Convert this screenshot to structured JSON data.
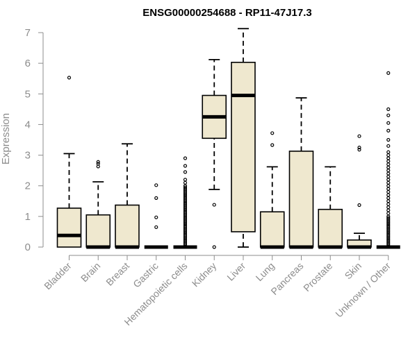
{
  "chart_data": {
    "type": "box",
    "title": "ENSG00000254688 - RP11-47J17.3",
    "xlabel": "",
    "ylabel": "Expression",
    "ylim": [
      0,
      7
    ],
    "yticks": [
      0,
      1,
      2,
      3,
      4,
      5,
      6,
      7
    ],
    "categories": [
      "Bladder",
      "Brain",
      "Breast",
      "Gastric",
      "Hematopoietic cells",
      "Kidney",
      "Liver",
      "Lung",
      "Pancreas",
      "Prostate",
      "Skin",
      "Unknown / Other"
    ],
    "box_color": "#efe8cf",
    "boxes": [
      {
        "category": "Bladder",
        "whisker_low": 0,
        "q1": 0,
        "median": 0.38,
        "q3": 1.27,
        "whisker_high": 3.05,
        "outliers": [
          5.53
        ]
      },
      {
        "category": "Brain",
        "whisker_low": 0,
        "q1": 0,
        "median": 0,
        "q3": 1.05,
        "whisker_high": 2.13,
        "outliers": [
          2.63,
          2.72,
          2.78
        ]
      },
      {
        "category": "Breast",
        "whisker_low": 0,
        "q1": 0,
        "median": 0,
        "q3": 1.37,
        "whisker_high": 3.37,
        "outliers": []
      },
      {
        "category": "Gastric",
        "whisker_low": 0,
        "q1": 0,
        "median": 0,
        "q3": 0,
        "whisker_high": 0,
        "outliers": [
          0.65,
          0.97,
          1.6,
          2.02
        ]
      },
      {
        "category": "Hematopoietic cells",
        "whisker_low": 0,
        "q1": 0,
        "median": 0,
        "q3": 0,
        "whisker_high": 0,
        "outliers": [
          0.05,
          0.1,
          0.15,
          0.2,
          0.25,
          0.3,
          0.35,
          0.4,
          0.45,
          0.5,
          0.55,
          0.6,
          0.65,
          0.7,
          0.75,
          0.8,
          0.85,
          0.9,
          0.95,
          1.0,
          1.05,
          1.1,
          1.15,
          1.2,
          1.25,
          1.3,
          1.35,
          1.4,
          1.45,
          1.5,
          1.55,
          1.6,
          1.65,
          1.7,
          1.75,
          1.8,
          1.85,
          1.9,
          1.95,
          2.0,
          2.1,
          2.2,
          2.45,
          2.65,
          2.9
        ]
      },
      {
        "category": "Kidney",
        "whisker_low": 1.88,
        "q1": 3.55,
        "median": 4.25,
        "q3": 4.95,
        "whisker_high": 6.12,
        "outliers": [
          1.38,
          0
        ]
      },
      {
        "category": "Liver",
        "whisker_low": 0,
        "q1": 0.5,
        "median": 4.95,
        "q3": 6.03,
        "whisker_high": 7.13,
        "outliers": []
      },
      {
        "category": "Lung",
        "whisker_low": 0,
        "q1": 0,
        "median": 0,
        "q3": 1.15,
        "whisker_high": 2.62,
        "outliers": [
          3.33,
          3.72
        ]
      },
      {
        "category": "Pancreas",
        "whisker_low": 0,
        "q1": 0,
        "median": 0,
        "q3": 3.13,
        "whisker_high": 4.87,
        "outliers": []
      },
      {
        "category": "Prostate",
        "whisker_low": 0,
        "q1": 0,
        "median": 0,
        "q3": 1.23,
        "whisker_high": 2.62,
        "outliers": []
      },
      {
        "category": "Skin",
        "whisker_low": 0,
        "q1": 0,
        "median": 0,
        "q3": 0.23,
        "whisker_high": 0.45,
        "outliers": [
          1.37,
          3.18,
          3.25,
          3.62
        ]
      },
      {
        "category": "Unknown / Other",
        "whisker_low": 0,
        "q1": 0,
        "median": 0,
        "q3": 0,
        "whisker_high": 0,
        "outliers": [
          0.05,
          0.1,
          0.15,
          0.2,
          0.25,
          0.3,
          0.35,
          0.4,
          0.45,
          0.5,
          0.55,
          0.6,
          0.65,
          0.7,
          0.75,
          0.8,
          0.85,
          0.9,
          0.95,
          1.0,
          1.1,
          1.2,
          1.3,
          1.4,
          1.5,
          1.6,
          1.7,
          1.8,
          1.9,
          2.0,
          2.1,
          2.2,
          2.3,
          2.4,
          2.5,
          2.6,
          2.7,
          2.8,
          2.9,
          3.0,
          3.1,
          3.3,
          3.5,
          3.8,
          4.05,
          4.3,
          4.5,
          5.68
        ]
      }
    ]
  }
}
